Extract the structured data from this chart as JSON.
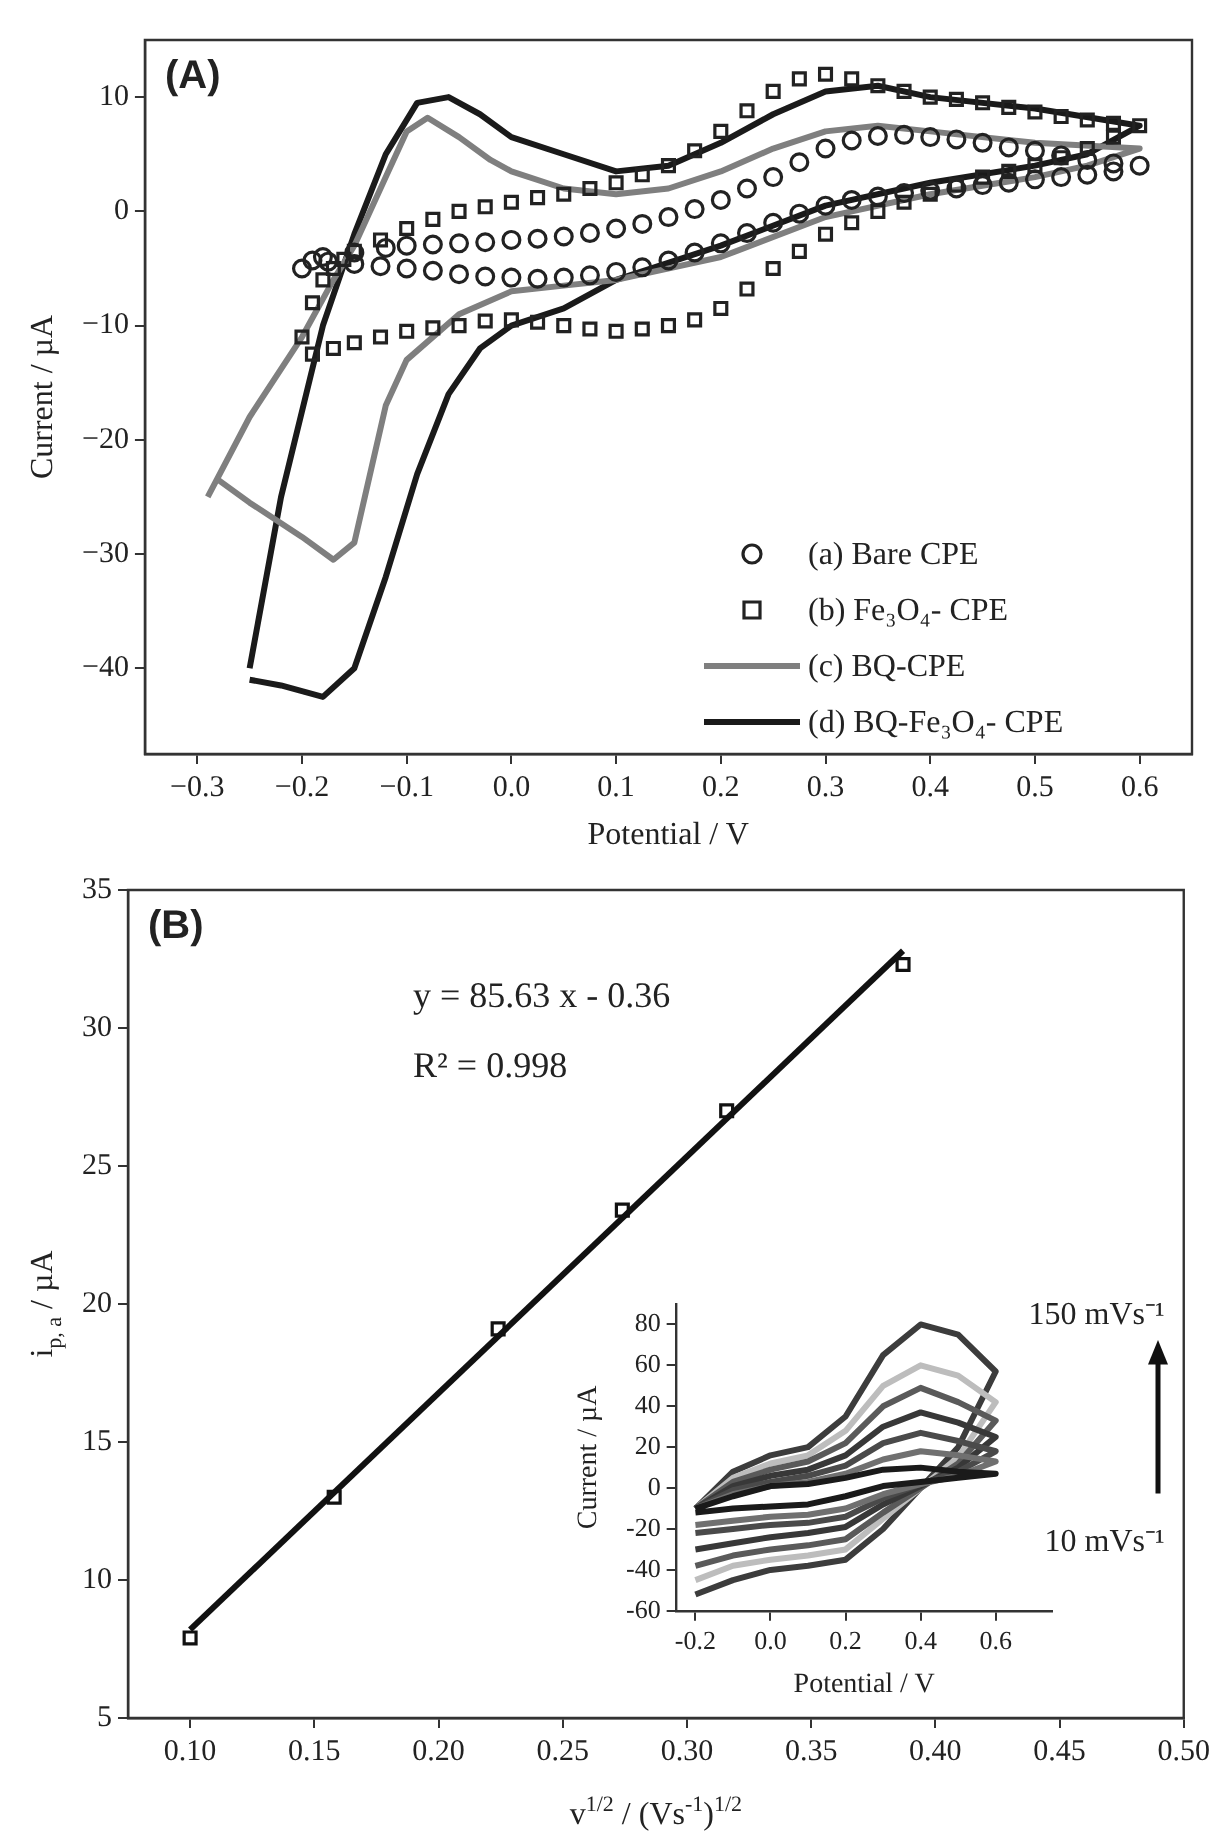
{
  "chart_data": [
    {
      "type": "line",
      "title": "(A)",
      "xlabel": "Potential / V",
      "ylabel": "Current / µA",
      "legend": "bottom right",
      "xlim": [
        -0.35,
        0.65
      ],
      "xticks": [
        {
          "value": -0.3,
          "label": "−0.3"
        },
        {
          "value": -0.2,
          "label": "−0.2"
        },
        {
          "value": -0.1,
          "label": "−0.1"
        },
        {
          "value": 0,
          "label": "0.0"
        },
        0.1,
        0.2,
        0.3,
        0.4,
        0.5,
        0.6
      ],
      "ylim": [
        -47.5,
        15
      ],
      "yticks": [
        {
          "value": -40,
          "label": "−40"
        },
        {
          "value": -30,
          "label": "−30"
        },
        {
          "value": -20,
          "label": "−20"
        },
        {
          "value": -10,
          "label": "−10"
        },
        0,
        10
      ],
      "series": [
        {
          "name": "(a) Bare CPE",
          "type": "scatter",
          "marker": "circle",
          "color": "#222222",
          "x": [
            -0.2,
            -0.18,
            -0.15,
            -0.12,
            -0.1,
            -0.075,
            -0.05,
            -0.025,
            0,
            0.025,
            0.05,
            0.075,
            0.1,
            0.125,
            0.15,
            0.175,
            0.2,
            0.225,
            0.25,
            0.275,
            0.3,
            0.325,
            0.35,
            0.375,
            0.4,
            0.425,
            0.45,
            0.475,
            0.5,
            0.525,
            0.55,
            0.575,
            0.6,
            0.575,
            0.55,
            0.525,
            0.5,
            0.475,
            0.45,
            0.425,
            0.4,
            0.375,
            0.35,
            0.325,
            0.3,
            0.275,
            0.25,
            0.225,
            0.2,
            0.175,
            0.15,
            0.125,
            0.1,
            0.075,
            0.05,
            0.025,
            0,
            -0.025,
            -0.05,
            -0.075,
            -0.1,
            -0.125,
            -0.15,
            -0.175,
            -0.19
          ],
          "values": [
            -5,
            -4,
            -3.6,
            -3.2,
            -3,
            -2.9,
            -2.8,
            -2.7,
            -2.5,
            -2.4,
            -2.2,
            -1.9,
            -1.5,
            -1.1,
            -0.5,
            0.2,
            1,
            2,
            3,
            4.3,
            5.5,
            6.2,
            6.6,
            6.7,
            6.5,
            6.3,
            6,
            5.6,
            5.3,
            4.9,
            4.5,
            4.2,
            4,
            3.5,
            3.2,
            3,
            2.8,
            2.5,
            2.3,
            2,
            1.8,
            1.6,
            1.3,
            1,
            0.5,
            -0.2,
            -1,
            -1.9,
            -2.8,
            -3.6,
            -4.3,
            -4.9,
            -5.3,
            -5.6,
            -5.8,
            -5.9,
            -5.8,
            -5.7,
            -5.5,
            -5.2,
            -5,
            -4.8,
            -4.6,
            -4.4,
            -4.3
          ]
        },
        {
          "name": "(b) Fe₃O₄- CPE",
          "type": "scatter",
          "marker": "square",
          "color": "#222222",
          "x": [
            -0.2,
            -0.19,
            -0.18,
            -0.17,
            -0.16,
            -0.15,
            -0.125,
            -0.1,
            -0.075,
            -0.05,
            -0.025,
            0,
            0.025,
            0.05,
            0.075,
            0.1,
            0.125,
            0.15,
            0.175,
            0.2,
            0.225,
            0.25,
            0.275,
            0.3,
            0.325,
            0.35,
            0.375,
            0.4,
            0.425,
            0.45,
            0.475,
            0.5,
            0.525,
            0.55,
            0.575,
            0.6,
            0.575,
            0.55,
            0.525,
            0.5,
            0.475,
            0.45,
            0.425,
            0.4,
            0.375,
            0.35,
            0.325,
            0.3,
            0.275,
            0.25,
            0.225,
            0.2,
            0.175,
            0.15,
            0.125,
            0.1,
            0.075,
            0.05,
            0.025,
            0,
            -0.025,
            -0.05,
            -0.075,
            -0.1,
            -0.125,
            -0.15,
            -0.17,
            -0.19
          ],
          "values": [
            -11,
            -8,
            -6,
            -5,
            -4.2,
            -3.5,
            -2.5,
            -1.5,
            -0.7,
            0,
            0.4,
            0.8,
            1.2,
            1.5,
            2,
            2.5,
            3.2,
            4,
            5.3,
            7,
            8.8,
            10.5,
            11.6,
            12,
            11.6,
            11,
            10.5,
            10,
            9.8,
            9.5,
            9.1,
            8.7,
            8.3,
            8,
            7.7,
            7.5,
            6.5,
            5.5,
            4.7,
            4,
            3.5,
            3,
            2.3,
            1.5,
            0.8,
            0,
            -1,
            -2,
            -3.5,
            -5,
            -6.8,
            -8.5,
            -9.5,
            -10,
            -10.3,
            -10.5,
            -10.3,
            -10,
            -9.7,
            -9.5,
            -9.6,
            -10,
            -10.2,
            -10.5,
            -11,
            -11.5,
            -12,
            -12.5
          ]
        },
        {
          "name": "(c) BQ-CPE",
          "type": "line",
          "color": "#7f7f7f",
          "x": [
            -0.29,
            -0.25,
            -0.2,
            -0.17,
            -0.15,
            -0.12,
            -0.1,
            -0.08,
            -0.05,
            -0.02,
            0,
            0.05,
            0.1,
            0.15,
            0.2,
            0.25,
            0.3,
            0.35,
            0.4,
            0.5,
            0.6,
            0.55,
            0.5,
            0.4,
            0.3,
            0.2,
            0.1,
            0.05,
            0,
            -0.05,
            -0.1,
            -0.12,
            -0.14,
            -0.15,
            -0.17,
            -0.2,
            -0.25,
            -0.28
          ],
          "values": [
            -25,
            -18,
            -11,
            -6,
            -3,
            3,
            7,
            8.2,
            6.5,
            4.5,
            3.5,
            2,
            1.5,
            2,
            3.5,
            5.5,
            7,
            7.5,
            7,
            6,
            5.5,
            4,
            3,
            1.5,
            -0.5,
            -4,
            -6,
            -6.5,
            -7,
            -9,
            -13,
            -17,
            -25,
            -29,
            -30.5,
            -28.5,
            -25.5,
            -23.5
          ]
        },
        {
          "name": "(d) BQ-Fe₃O₄- CPE",
          "type": "line",
          "color": "#1a1a1a",
          "x": [
            -0.25,
            -0.22,
            -0.18,
            -0.15,
            -0.12,
            -0.09,
            -0.06,
            -0.03,
            0,
            0.05,
            0.1,
            0.15,
            0.2,
            0.25,
            0.3,
            0.35,
            0.4,
            0.5,
            0.6,
            0.55,
            0.5,
            0.4,
            0.3,
            0.2,
            0.1,
            0.05,
            0,
            -0.03,
            -0.06,
            -0.09,
            -0.12,
            -0.15,
            -0.18,
            -0.2,
            -0.22,
            -0.25
          ],
          "values": [
            -40,
            -25,
            -10,
            -2,
            5,
            9.5,
            10,
            8.5,
            6.5,
            5,
            3.5,
            4,
            6,
            8.5,
            10.5,
            11,
            10,
            9,
            7.5,
            5,
            4,
            2.5,
            0.5,
            -3,
            -6,
            -8.5,
            -10,
            -12,
            -16,
            -23,
            -32,
            -40,
            -42.5,
            -42,
            -41.5,
            -41
          ]
        }
      ]
    },
    {
      "type": "scatter",
      "title": "(B)",
      "xlabel": "v$^{1/2}$ / (Vs$^{-1}$)$^{1/2}$",
      "ylabel": "i$_{p, a}$ / µA",
      "annotations": [
        "y = 85.63 x - 0.36",
        "R² = 0.998"
      ],
      "xlim": [
        0.075,
        0.5
      ],
      "xticks": [
        {
          "value": 0.1,
          "label": "0.10"
        },
        0.15,
        {
          "value": 0.2,
          "label": "0.20"
        },
        0.25,
        {
          "value": 0.3,
          "label": "0.30"
        },
        0.35,
        {
          "value": 0.4,
          "label": "0.40"
        },
        0.45,
        {
          "value": 0.5,
          "label": "0.50"
        }
      ],
      "ylim": [
        5,
        35
      ],
      "yticks": [
        5,
        10,
        15,
        20,
        25,
        30,
        35
      ],
      "series": [
        {
          "type": "scatter",
          "marker": "square",
          "color": "#111111",
          "x": [
            0.1,
            0.158,
            0.224,
            0.274,
            0.316,
            0.387
          ],
          "values": [
            7.9,
            13,
            19.1,
            23.4,
            27,
            32.3
          ]
        },
        {
          "type": "line",
          "color": "#111111",
          "x": [
            0.1,
            0.387
          ],
          "values": [
            8.2,
            32.8
          ]
        }
      ]
    },
    {
      "type": "line",
      "xlabel": "Potential / V",
      "ylabel": "Current / µA",
      "annotations": [
        "150 mVs⁻¹",
        "10 mVs⁻¹"
      ],
      "xlim": [
        -0.25,
        0.75
      ],
      "xticks": [
        -0.2,
        {
          "value": 0,
          "label": "0.0"
        },
        0.2,
        0.4,
        0.6
      ],
      "ylim": [
        -60,
        90
      ],
      "yticks": [
        -60,
        -40,
        -20,
        0,
        20,
        40,
        60,
        80
      ],
      "series": [
        {
          "color": "#1a1a1a",
          "x": [
            -0.2,
            -0.1,
            0,
            0.1,
            0.2,
            0.3,
            0.4,
            0.5,
            0.6,
            0.5,
            0.4,
            0.3,
            0.2,
            0.1,
            0,
            -0.1,
            -0.2
          ],
          "values": [
            -10,
            -4,
            1,
            2,
            5,
            9,
            10,
            8,
            7,
            5,
            3,
            1,
            -4,
            -8,
            -9,
            -10,
            -12
          ]
        },
        {
          "color": "#707070",
          "x": [
            -0.2,
            -0.1,
            0,
            0.1,
            0.2,
            0.3,
            0.4,
            0.5,
            0.6,
            0.5,
            0.4,
            0.3,
            0.2,
            0.1,
            0,
            -0.1,
            -0.2
          ],
          "values": [
            -10,
            -3,
            1,
            3,
            7,
            14,
            18,
            16,
            13,
            6,
            2,
            -3,
            -10,
            -13,
            -14,
            -16,
            -18
          ]
        },
        {
          "color": "#4a4a4a",
          "x": [
            -0.2,
            -0.1,
            0,
            0.1,
            0.2,
            0.3,
            0.4,
            0.5,
            0.6,
            0.5,
            0.4,
            0.3,
            0.2,
            0.1,
            0,
            -0.1,
            -0.2
          ],
          "values": [
            -10,
            -1,
            3,
            6,
            11,
            22,
            27,
            23,
            18,
            8,
            2,
            -5,
            -14,
            -17,
            -18,
            -20,
            -22
          ]
        },
        {
          "color": "#383838",
          "x": [
            -0.2,
            -0.1,
            0,
            0.1,
            0.2,
            0.3,
            0.4,
            0.5,
            0.6,
            0.5,
            0.4,
            0.3,
            0.2,
            0.1,
            0,
            -0.1,
            -0.2
          ],
          "values": [
            -10,
            1,
            6,
            9,
            16,
            30,
            37,
            32,
            25,
            10,
            1,
            -8,
            -19,
            -22,
            -24,
            -27,
            -30
          ]
        },
        {
          "color": "#5a5a5a",
          "x": [
            -0.2,
            -0.1,
            0,
            0.1,
            0.2,
            0.3,
            0.4,
            0.5,
            0.6,
            0.5,
            0.4,
            0.3,
            0.2,
            0.1,
            0,
            -0.1,
            -0.2
          ],
          "values": [
            -10,
            3,
            9,
            13,
            22,
            40,
            49,
            42,
            33,
            12,
            0,
            -12,
            -25,
            -28,
            -30,
            -33,
            -38
          ]
        },
        {
          "color": "#bdbdbd",
          "x": [
            -0.2,
            -0.1,
            0,
            0.1,
            0.2,
            0.3,
            0.4,
            0.5,
            0.6,
            0.5,
            0.4,
            0.3,
            0.2,
            0.1,
            0,
            -0.1,
            -0.2
          ],
          "values": [
            -10,
            5,
            12,
            16,
            28,
            50,
            60,
            55,
            42,
            15,
            0,
            -15,
            -30,
            -33,
            -35,
            -38,
            -45
          ]
        },
        {
          "color": "#3c3c3c",
          "x": [
            -0.2,
            -0.1,
            0,
            0.1,
            0.2,
            0.3,
            0.4,
            0.5,
            0.6,
            0.5,
            0.4,
            0.3,
            0.2,
            0.1,
            0,
            -0.1,
            -0.2
          ],
          "values": [
            -10,
            8,
            16,
            20,
            35,
            65,
            80,
            75,
            57,
            20,
            0,
            -20,
            -35,
            -38,
            -40,
            -45,
            -52
          ]
        }
      ]
    }
  ]
}
